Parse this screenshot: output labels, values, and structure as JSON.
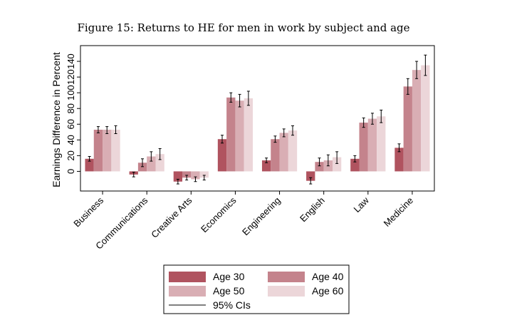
{
  "chart_data": {
    "type": "bar",
    "title": "Figure 15: Returns to HE for men in work by subject and age",
    "xlabel": "",
    "ylabel": "Earnings Difference in Percent",
    "ylim": [
      -25,
      160
    ],
    "yticks": [
      0,
      20,
      40,
      60,
      80,
      100,
      120,
      140
    ],
    "grid": false,
    "legend_position": "bottom",
    "categories": [
      "Business",
      "Communications",
      "Creative Arts",
      "Economics",
      "Engineering",
      "English",
      "Law",
      "Medicine"
    ],
    "series": [
      {
        "name": "Age 30",
        "color": "#b0535f",
        "values": [
          16,
          -4,
          -13,
          41,
          14,
          -12,
          16,
          30
        ],
        "ci_low": [
          13,
          -7,
          -16,
          36,
          11,
          -16,
          12,
          25
        ],
        "ci_high": [
          19,
          -1,
          -10,
          46,
          17,
          -8,
          20,
          35
        ]
      },
      {
        "name": "Age 40",
        "color": "#c4838c",
        "values": [
          53,
          11,
          -8,
          94,
          41,
          12,
          62,
          108
        ],
        "ci_low": [
          49,
          6,
          -11,
          88,
          37,
          7,
          56,
          98
        ],
        "ci_high": [
          57,
          16,
          -5,
          100,
          45,
          17,
          68,
          118
        ]
      },
      {
        "name": "Age 50",
        "color": "#d9aeb4",
        "values": [
          53,
          19,
          -10,
          90,
          49,
          14,
          67,
          129
        ],
        "ci_low": [
          48,
          13,
          -13,
          82,
          44,
          7,
          60,
          118
        ],
        "ci_high": [
          57,
          25,
          -7,
          98,
          54,
          21,
          74,
          140
        ]
      },
      {
        "name": "Age 60",
        "color": "#ecd6d9",
        "values": [
          53,
          22,
          -8,
          93,
          52,
          18,
          70,
          135
        ],
        "ci_low": [
          48,
          15,
          -11,
          84,
          46,
          10,
          62,
          122
        ],
        "ci_high": [
          58,
          29,
          -5,
          102,
          58,
          25,
          78,
          148
        ]
      }
    ],
    "ci_label": "95% CIs"
  }
}
